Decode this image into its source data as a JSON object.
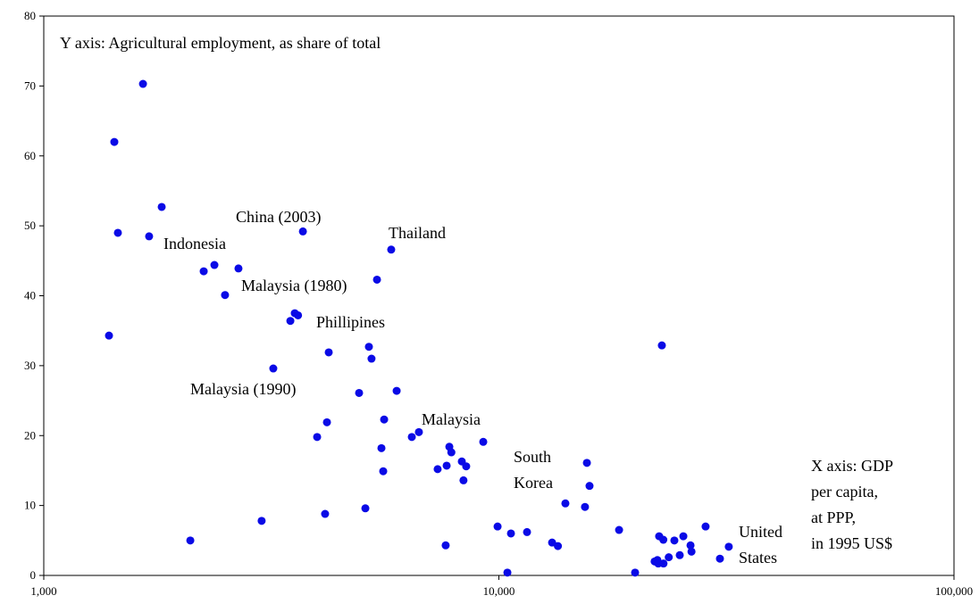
{
  "chart_data": {
    "type": "scatter",
    "color": "#0a0ae6",
    "xscale": "log",
    "grid": false,
    "xlim": [
      1000,
      100000
    ],
    "ylim": [
      0,
      80
    ],
    "xticks": [
      {
        "value": 1000,
        "label": "1,000"
      },
      {
        "value": 10000,
        "label": "10,000"
      },
      {
        "value": 100000,
        "label": "100,000"
      }
    ],
    "yticks": [
      0,
      10,
      20,
      30,
      40,
      50,
      60,
      70,
      80
    ],
    "annotations": [
      [
        "Y axis: Agricultural employment, as share of total"
      ],
      [
        "China (2003)"
      ],
      [
        "Thailand"
      ],
      [
        "Indonesia"
      ],
      [
        "Malaysia (1980)"
      ],
      [
        "Phillipines"
      ],
      [
        "Malaysia (1990)"
      ],
      [
        "Malaysia"
      ],
      [
        "South",
        "Korea"
      ],
      [
        "United",
        "States"
      ],
      [
        "X axis: GDP",
        "per capita,",
        "at PPP,",
        "in 1995 US$"
      ]
    ],
    "x": [
      1652,
      1429,
      1816,
      1455,
      1704,
      3710,
      5800,
      2371,
      2246,
      2678,
      5397,
      2502,
      1391,
      3561,
      3620,
      3482,
      5181,
      4228,
      5250,
      3194,
      4930,
      5962,
      5596,
      4190,
      6672,
      6437,
      3987,
      9240,
      5520,
      7783,
      7863,
      8290,
      7678,
      8476,
      7336,
      5570,
      8360,
      15610,
      15820,
      14000,
      15460,
      5089,
      4151,
      3011,
      2099,
      9935,
      10630,
      11530,
      7640,
      10440,
      13090,
      13480,
      18370,
      19920,
      22810,
      22500,
      22980,
      24300,
      25430,
      28460,
      26370,
      26500,
      24970,
      23620,
      22300,
      21990,
      22400,
      23000,
      32000,
      30600
    ],
    "values": [
      70.3,
      62.0,
      52.7,
      49.0,
      48.5,
      49.2,
      46.6,
      44.4,
      43.5,
      43.9,
      42.3,
      40.1,
      34.3,
      37.5,
      37.2,
      36.4,
      32.7,
      31.9,
      31.0,
      29.6,
      26.1,
      26.4,
      22.3,
      21.9,
      20.5,
      19.8,
      19.8,
      19.1,
      18.2,
      18.4,
      17.6,
      16.3,
      15.7,
      15.6,
      15.2,
      14.9,
      13.6,
      16.1,
      12.8,
      10.3,
      9.8,
      9.6,
      8.8,
      7.8,
      5.0,
      7.0,
      6.0,
      6.2,
      4.3,
      0.4,
      4.7,
      4.2,
      6.5,
      0.4,
      32.9,
      5.6,
      5.1,
      5.0,
      5.6,
      7.0,
      4.3,
      3.4,
      2.9,
      2.6,
      2.2,
      2.0,
      1.7,
      1.7,
      4.1,
      2.4
    ]
  }
}
